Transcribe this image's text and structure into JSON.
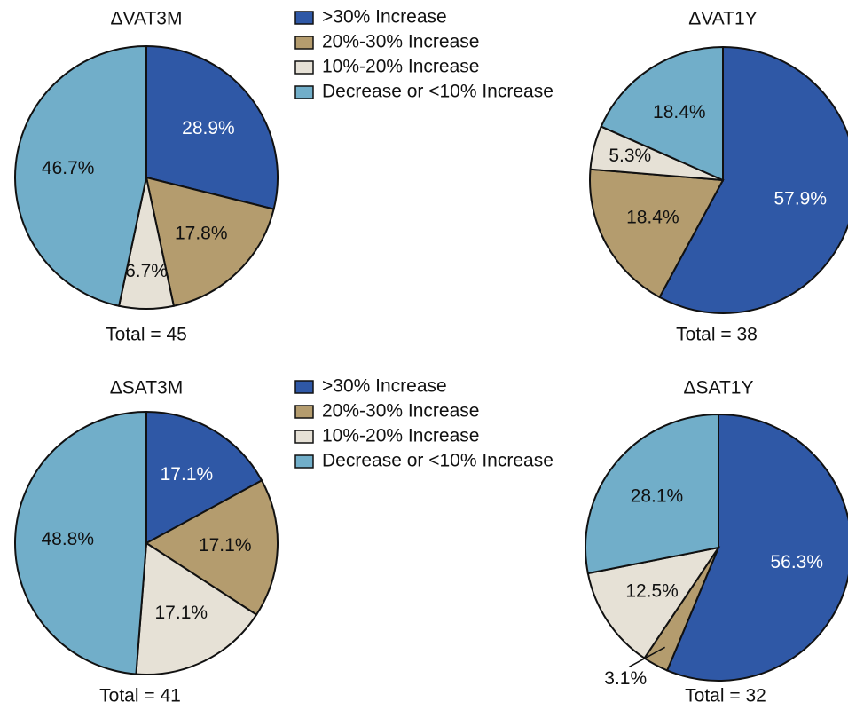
{
  "chart_data": [
    {
      "type": "pie",
      "title": "ΔVAT3M",
      "total_label": "Total = 45",
      "categories": [
        ">30% Increase",
        "20%-30% Increase",
        "10%-20% Increase",
        "Decrease or <10% Increase"
      ],
      "colors": [
        "#2f58a6",
        "#b49c6e",
        "#e6e1d6",
        "#71aec9"
      ],
      "values": [
        28.9,
        17.8,
        6.7,
        46.7
      ],
      "value_labels": [
        "28.9%",
        "17.8%",
        "6.7%",
        "46.7%"
      ],
      "legend": true
    },
    {
      "type": "pie",
      "title": "ΔVAT1Y",
      "total_label": "Total = 38",
      "categories": [
        ">30% Increase",
        "20%-30% Increase",
        "10%-20% Increase",
        "Decrease or <10% Increase"
      ],
      "colors": [
        "#2f58a6",
        "#b49c6e",
        "#e6e1d6",
        "#71aec9"
      ],
      "values": [
        57.9,
        18.4,
        5.3,
        18.4
      ],
      "value_labels": [
        "57.9%",
        "18.4%",
        "5.3%",
        "18.4%"
      ],
      "legend": false
    },
    {
      "type": "pie",
      "title": "ΔSAT3M",
      "total_label": "Total = 41",
      "categories": [
        ">30% Increase",
        "20%-30% Increase",
        "10%-20% Increase",
        "Decrease or <10% Increase"
      ],
      "colors": [
        "#2f58a6",
        "#b49c6e",
        "#e6e1d6",
        "#71aec9"
      ],
      "values": [
        17.1,
        17.1,
        17.1,
        48.8
      ],
      "value_labels": [
        "17.1%",
        "17.1%",
        "17.1%",
        "48.8%"
      ],
      "legend": true
    },
    {
      "type": "pie",
      "title": "ΔSAT1Y",
      "total_label": "Total = 32",
      "categories": [
        ">30% Increase",
        "20%-30% Increase",
        "10%-20% Increase",
        "Decrease or <10% Increase"
      ],
      "colors": [
        "#2f58a6",
        "#b49c6e",
        "#e6e1d6",
        "#71aec9"
      ],
      "values": [
        56.3,
        3.1,
        12.5,
        28.1
      ],
      "value_labels": [
        "56.3%",
        "3.1%",
        "12.5%",
        "28.1%"
      ],
      "legend": false
    }
  ]
}
